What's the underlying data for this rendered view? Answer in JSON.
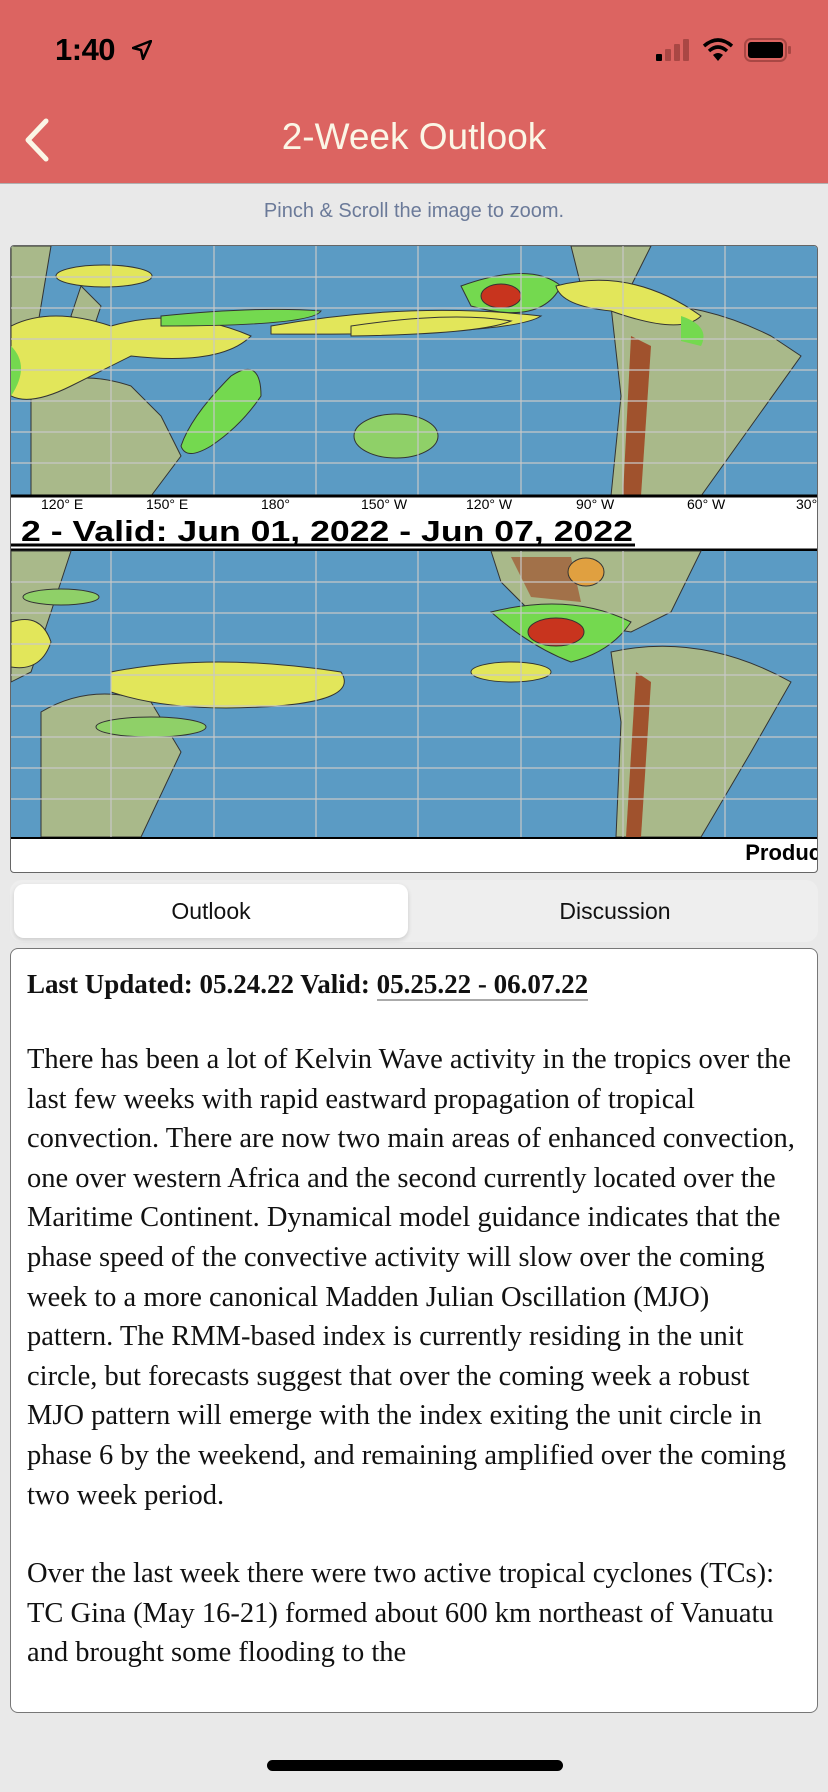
{
  "status_bar": {
    "time": "1:40",
    "icons": [
      "location-arrow-icon",
      "signal-icon",
      "wifi-icon",
      "battery-icon"
    ]
  },
  "header": {
    "title": "2-Week Outlook",
    "back_icon": "chevron-left-icon"
  },
  "hint": "Pinch & Scroll the image to zoom.",
  "map": {
    "longitude_labels": [
      "120° E",
      "150° E",
      "180°",
      "150° W",
      "120° W",
      "90° W",
      "60° W",
      "30°"
    ],
    "panel_title": "2 - Valid: Jun 01, 2022 - Jun 07, 2022",
    "footer_text": "Produc"
  },
  "tabs": [
    {
      "label": "Outlook",
      "active": true
    },
    {
      "label": "Discussion",
      "active": false
    }
  ],
  "content": {
    "updated_prefix": "Last Updated: 05.24.22 Valid: ",
    "valid_range": "05.25.22 - 06.07.22",
    "paragraphs": [
      "There has been a lot of Kelvin Wave activity in the tropics over the last few weeks with rapid eastward propagation of tropical convection. There are now two main areas of enhanced convection, one over western Africa and the second currently located over the Maritime Continent. Dynamical model guidance indicates that the phase speed of the convective activity will slow over the coming week to a more canonical Madden Julian Oscillation (MJO) pattern. The RMM-based index is currently residing in the unit circle, but forecasts suggest that over the coming week a robust MJO pattern will emerge with the index exiting the unit circle in phase 6 by the weekend, and remaining amplified over the coming two week period.",
      "Over the last week there were two active tropical cyclones (TCs): TC Gina (May 16-21) formed about 600 km northeast of Vanuatu and brought some flooding to the"
    ]
  },
  "colors": {
    "header": "#dc6461",
    "ocean": "#5b9bc4",
    "yellow_area": "#e2e65a",
    "green_area": "#74d94f",
    "red_area": "#c8341e"
  }
}
